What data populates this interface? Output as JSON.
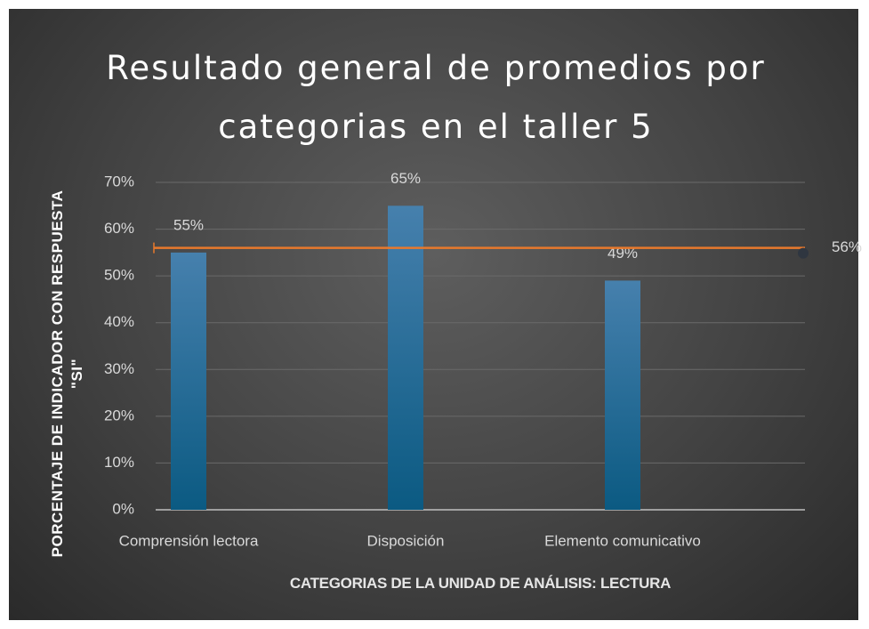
{
  "chart_data": {
    "type": "bar",
    "title": "Resultado general de promedios por categorias en el taller 5",
    "x_label": "CATEGORIAS DE LA UNIDAD DE ANÁLISIS: LECTURA",
    "y_label": "PORCENTAJE DE INDICADOR CON RESPUESTA \"SI\"",
    "categories": [
      "Comprensión lectora",
      "Disposición",
      "Elemento comunicativo"
    ],
    "values": [
      55,
      65,
      49
    ],
    "value_labels": [
      "55%",
      "65%",
      "49%"
    ],
    "color": "#1d6a96",
    "ylim": [
      0,
      70
    ],
    "yticks": [
      {
        "value": 0,
        "label": "0%"
      },
      {
        "value": 10,
        "label": "10%"
      },
      {
        "value": 20,
        "label": "20%"
      },
      {
        "value": 30,
        "label": "30%"
      },
      {
        "value": 40,
        "label": "40%"
      },
      {
        "value": 50,
        "label": "50%"
      },
      {
        "value": 60,
        "label": "60%"
      },
      {
        "value": 70,
        "label": "70%"
      }
    ],
    "grid": true,
    "reference_line": {
      "value": 56,
      "label": "56%",
      "color": "#e8792c"
    }
  }
}
